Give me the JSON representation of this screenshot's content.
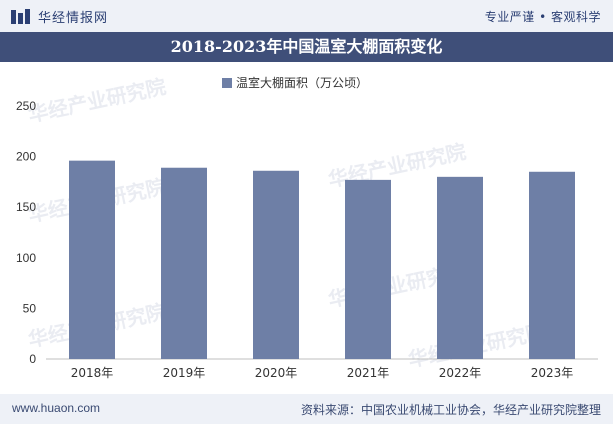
{
  "header": {
    "brand": "华经情报网",
    "slogan": "专业严谨 • 客观科学"
  },
  "title": "2018-2023年中国温室大棚面积变化",
  "chart_data": {
    "type": "bar",
    "categories": [
      "2018年",
      "2019年",
      "2020年",
      "2021年",
      "2022年",
      "2023年"
    ],
    "series": [
      {
        "name": "温室大棚面积（万公顷）",
        "values": [
          196,
          189,
          186,
          177,
          180,
          185
        ]
      }
    ],
    "ylim": [
      0,
      250
    ],
    "yticks": [
      0,
      50,
      100,
      150,
      200,
      250
    ],
    "grid": false,
    "legend": "top-center",
    "bar_color": "#6e7fa6"
  },
  "watermark": "华经产业研究院",
  "footer": {
    "url": "www.huaon.com",
    "source": "资料来源：中国农业机械工业协会，华经产业研究院整理"
  }
}
